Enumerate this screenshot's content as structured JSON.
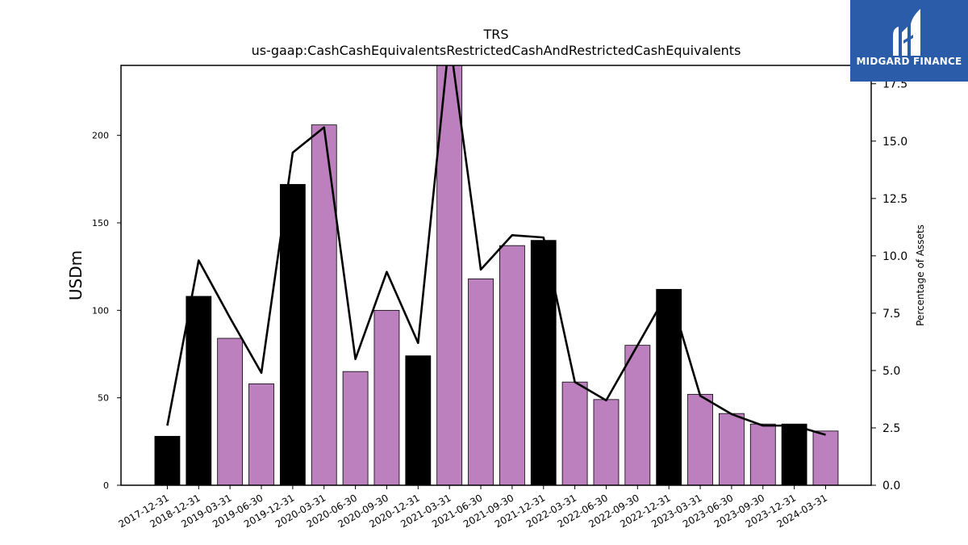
{
  "chart_data": {
    "type": "bar",
    "title": "TRS",
    "subtitle": "us-gaap:CashCashEquivalentsRestrictedCashAndRestrictedCashEquivalents",
    "ylabel": "USDm",
    "y2label": "Percentage of Assets",
    "categories": [
      "2017-12-31",
      "2018-12-31",
      "2019-03-31",
      "2019-06-30",
      "2019-12-31",
      "2020-03-31",
      "2020-06-30",
      "2020-09-30",
      "2020-12-31",
      "2021-03-31",
      "2021-06-30",
      "2021-09-30",
      "2021-12-31",
      "2022-03-31",
      "2022-06-30",
      "2022-09-30",
      "2022-12-31",
      "2023-03-31",
      "2023-06-30",
      "2023-09-30",
      "2023-12-31",
      "2024-03-31"
    ],
    "series": [
      {
        "values": [
          28,
          108,
          84,
          58,
          172,
          206,
          65,
          100,
          74,
          245,
          118,
          137,
          140,
          59,
          49,
          80,
          112,
          52,
          41,
          35,
          35,
          31
        ],
        "colors": [
          "#000000",
          "#000000",
          "#bb80bd",
          "#bb80bd",
          "#000000",
          "#bb80bd",
          "#bb80bd",
          "#bb80bd",
          "#000000",
          "#bb80bd",
          "#bb80bd",
          "#bb80bd",
          "#000000",
          "#bb80bd",
          "#bb80bd",
          "#bb80bd",
          "#000000",
          "#bb80bd",
          "#bb80bd",
          "#bb80bd",
          "#000000",
          "#bb80bd"
        ],
        "axis": "left"
      },
      {
        "type": "line",
        "values": [
          2.6,
          9.8,
          7.3,
          4.9,
          14.5,
          15.6,
          5.5,
          9.3,
          6.2,
          19.5,
          9.4,
          10.9,
          10.8,
          4.5,
          3.7,
          6.1,
          8.5,
          3.9,
          3.1,
          2.6,
          2.6,
          2.2
        ],
        "color": "#000000",
        "axis": "right"
      }
    ],
    "ylim": [
      0,
      240
    ],
    "y2lim": [
      0,
      18.3
    ],
    "yticks": [
      "0",
      "50",
      "100",
      "150",
      "200"
    ],
    "y2ticks": [
      "0.0",
      "2.5",
      "5.0",
      "7.5",
      "10.0",
      "12.5",
      "15.0",
      "17.5"
    ],
    "grid": false
  },
  "logo": {
    "text": "MIDGARD FINANCE",
    "color": "#2a5caa"
  }
}
